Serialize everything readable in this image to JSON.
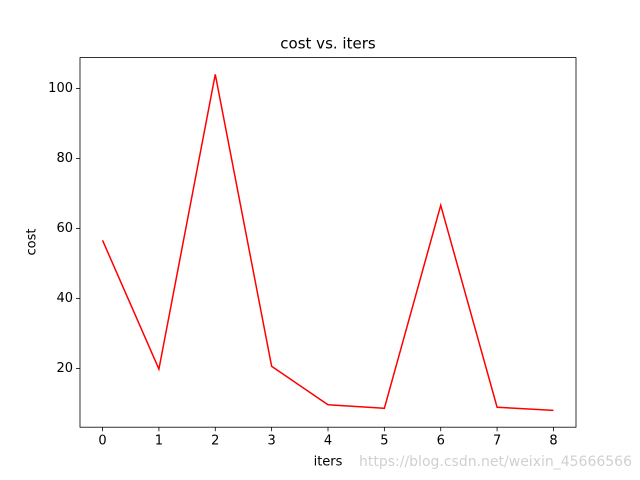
{
  "chart_data": {
    "type": "line",
    "title": "cost vs. iters",
    "xlabel": "iters",
    "ylabel": "cost",
    "x": [
      0,
      1,
      2,
      3,
      4,
      5,
      6,
      7,
      8
    ],
    "series": [
      {
        "name": "cost",
        "color": "#ff0000",
        "values": [
          56.6,
          19.8,
          104.0,
          20.6,
          9.6,
          8.6,
          66.6,
          8.9,
          8.0
        ]
      }
    ],
    "xlim": [
      -0.4,
      8.4
    ],
    "xticks": [
      0,
      1,
      2,
      3,
      4,
      5,
      6,
      7,
      8
    ],
    "ylim": [
      3.2,
      108.8
    ],
    "yticks": [
      20,
      40,
      60,
      80,
      100
    ],
    "watermark": "https://blog.csdn.net/weixin_45666566"
  }
}
